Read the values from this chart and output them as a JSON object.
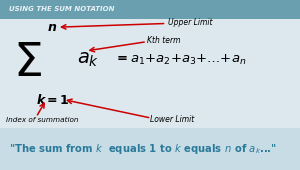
{
  "bg_color": "#dce8ee",
  "header_bg": "#6a9fb0",
  "header_text": "USING THE SUM NOTATION",
  "header_text_color": "#e8f0f4",
  "upper_limit_label": "Upper Limit",
  "kth_term_label": "Kth term",
  "index_label": "Index of summation",
  "lower_limit_label": "Lower Limit",
  "bottom_bg": "#c8dce6",
  "bottom_text_color": "#2a7a9a",
  "arrow_color": "#cc0000",
  "formula_color": "#111111"
}
